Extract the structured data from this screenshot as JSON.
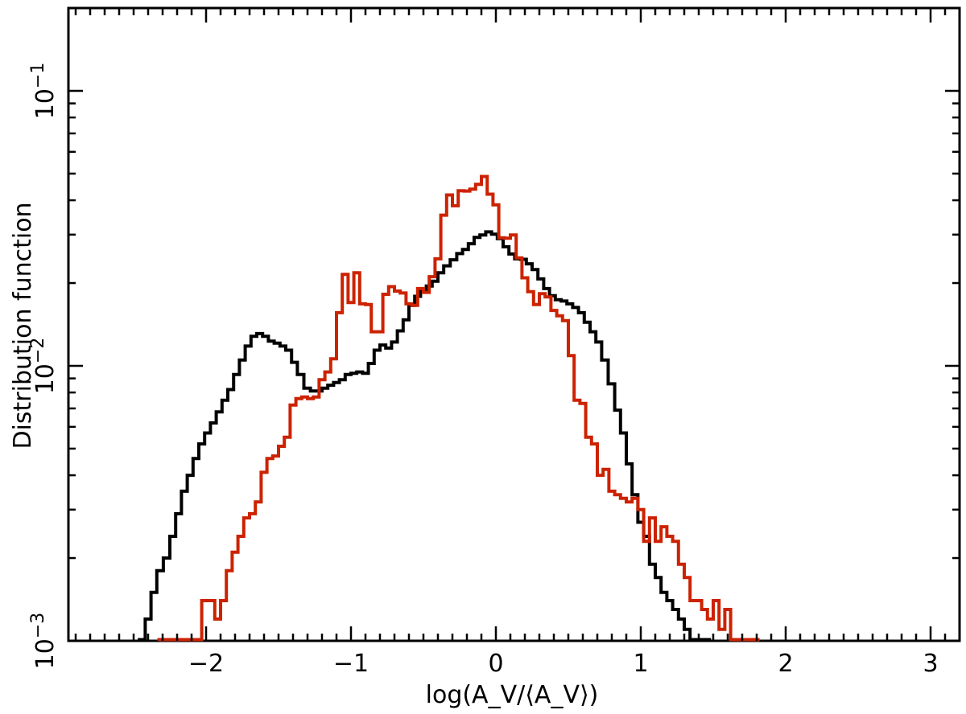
{
  "chart_data": {
    "type": "line",
    "step": true,
    "xlabel": "log(A_V/⟨A_V⟩)",
    "ylabel": "Distribution function",
    "xlim": [
      -2.95,
      3.2
    ],
    "ylim": [
      0.001,
      0.2
    ],
    "yscale": "log",
    "x_ticks": [
      {
        "value": -2,
        "label": "−2"
      },
      {
        "value": -1,
        "label": "−1"
      },
      {
        "value": 0,
        "label": "0"
      },
      {
        "value": 1,
        "label": "1"
      },
      {
        "value": 2,
        "label": "2"
      },
      {
        "value": 3,
        "label": "3"
      }
    ],
    "y_ticks": [
      {
        "value": 0.001,
        "base": "10",
        "exp": "−3"
      },
      {
        "value": 0.01,
        "base": "10",
        "exp": "−2"
      },
      {
        "value": 0.1,
        "base": "10",
        "exp": "−1"
      }
    ],
    "grid": false,
    "series": [
      {
        "color": "#000000",
        "x": [
          -2.44,
          -2.4,
          -2.36,
          -2.32,
          -2.27,
          -2.23,
          -2.19,
          -2.15,
          -2.11,
          -2.07,
          -2.03,
          -1.99,
          -1.95,
          -1.91,
          -1.87,
          -1.83,
          -1.79,
          -1.75,
          -1.71,
          -1.67,
          -1.63,
          -1.59,
          -1.55,
          -1.51,
          -1.47,
          -1.43,
          -1.39,
          -1.35,
          -1.3,
          -1.26,
          -1.22,
          -1.18,
          -1.14,
          -1.1,
          -1.06,
          -1.02,
          -0.98,
          -0.94,
          -0.9,
          -0.86,
          -0.82,
          -0.78,
          -0.74,
          -0.7,
          -0.66,
          -0.62,
          -0.58,
          -0.54,
          -0.5,
          -0.46,
          -0.42,
          -0.38,
          -0.34,
          -0.29,
          -0.25,
          -0.21,
          -0.17,
          -0.13,
          -0.09,
          -0.05,
          -0.01,
          0.03,
          0.07,
          0.11,
          0.15,
          0.19,
          0.23,
          0.27,
          0.31,
          0.35,
          0.39,
          0.43,
          0.47,
          0.51,
          0.55,
          0.59,
          0.63,
          0.67,
          0.71,
          0.75,
          0.8,
          0.84,
          0.88,
          0.92,
          0.96,
          1.0,
          1.04,
          1.08,
          1.12,
          1.16,
          1.2,
          1.24,
          1.28,
          1.32,
          1.36,
          1.4,
          1.44,
          1.47
        ],
        "y": [
          0.001,
          0.0012,
          0.0015,
          0.0018,
          0.002,
          0.0024,
          0.0029,
          0.0035,
          0.004,
          0.0046,
          0.0052,
          0.0057,
          0.0062,
          0.0068,
          0.0075,
          0.0082,
          0.0093,
          0.0105,
          0.0118,
          0.0128,
          0.0131,
          0.0128,
          0.0123,
          0.0121,
          0.0118,
          0.0114,
          0.0103,
          0.0093,
          0.0083,
          0.0081,
          0.0081,
          0.0083,
          0.0085,
          0.0087,
          0.0089,
          0.0093,
          0.0094,
          0.0095,
          0.0094,
          0.0102,
          0.0114,
          0.0119,
          0.0116,
          0.0122,
          0.0134,
          0.0147,
          0.0166,
          0.0179,
          0.0187,
          0.0195,
          0.0203,
          0.0218,
          0.0231,
          0.0243,
          0.0256,
          0.0265,
          0.0278,
          0.0293,
          0.0299,
          0.0307,
          0.0301,
          0.029,
          0.0271,
          0.0255,
          0.0245,
          0.0244,
          0.0235,
          0.0224,
          0.0207,
          0.0191,
          0.018,
          0.0174,
          0.0172,
          0.0168,
          0.0163,
          0.0156,
          0.0144,
          0.0133,
          0.0122,
          0.0105,
          0.0086,
          0.0069,
          0.0057,
          0.0044,
          0.0034,
          0.0027,
          0.0024,
          0.0019,
          0.0017,
          0.0015,
          0.0014,
          0.0013,
          0.0012,
          0.0011,
          0.001,
          0.001,
          0.001,
          0.001
        ]
      },
      {
        "color": "#cc2200",
        "x": [
          -2.25,
          -2.1,
          -1.96,
          -1.92,
          -1.88,
          -1.84,
          -1.8,
          -1.76,
          -1.72,
          -1.68,
          -1.64,
          -1.6,
          -1.56,
          -1.52,
          -1.48,
          -1.44,
          -1.4,
          -1.36,
          -1.32,
          -1.28,
          -1.24,
          -1.2,
          -1.16,
          -1.12,
          -1.08,
          -1.04,
          -1.0,
          -0.96,
          -0.92,
          -0.88,
          -0.84,
          -0.8,
          -0.76,
          -0.72,
          -0.68,
          -0.64,
          -0.6,
          -0.56,
          -0.52,
          -0.48,
          -0.44,
          -0.4,
          -0.36,
          -0.32,
          -0.28,
          -0.24,
          -0.2,
          -0.16,
          -0.12,
          -0.08,
          -0.04,
          0.0,
          0.04,
          0.08,
          0.12,
          0.16,
          0.2,
          0.24,
          0.28,
          0.32,
          0.36,
          0.4,
          0.44,
          0.48,
          0.52,
          0.56,
          0.6,
          0.64,
          0.68,
          0.72,
          0.76,
          0.8,
          0.84,
          0.88,
          0.92,
          0.96,
          1.0,
          1.04,
          1.08,
          1.12,
          1.16,
          1.2,
          1.24,
          1.28,
          1.32,
          1.36,
          1.4,
          1.44,
          1.48,
          1.52,
          1.56,
          1.6,
          1.64,
          1.68,
          1.72,
          1.76,
          1.8
        ],
        "y": [
          0.001,
          0.001,
          0.0014,
          0.0012,
          0.0014,
          0.0018,
          0.0021,
          0.0024,
          0.0028,
          0.0029,
          0.0032,
          0.0041,
          0.0046,
          0.0047,
          0.0051,
          0.0055,
          0.0072,
          0.0076,
          0.0077,
          0.0076,
          0.0077,
          0.0089,
          0.0095,
          0.0106,
          0.0156,
          0.0215,
          0.017,
          0.0218,
          0.0168,
          0.0167,
          0.0133,
          0.0133,
          0.0182,
          0.0194,
          0.0187,
          0.0184,
          0.0168,
          0.0166,
          0.0191,
          0.0185,
          0.0211,
          0.0245,
          0.0353,
          0.0418,
          0.0382,
          0.0433,
          0.0432,
          0.0439,
          0.0457,
          0.0488,
          0.0421,
          0.0385,
          0.0292,
          0.0291,
          0.0299,
          0.0247,
          0.0209,
          0.0186,
          0.0167,
          0.0183,
          0.0178,
          0.0159,
          0.0152,
          0.0146,
          0.0109,
          0.0075,
          0.0073,
          0.0055,
          0.0052,
          0.004,
          0.0042,
          0.0035,
          0.0034,
          0.0033,
          0.0032,
          0.0033,
          0.003,
          0.0023,
          0.0028,
          0.0023,
          0.0026,
          0.0024,
          0.0023,
          0.0019,
          0.0017,
          0.0014,
          0.0014,
          0.0013,
          0.0012,
          0.0014,
          0.0011,
          0.0013,
          0.001,
          0.001,
          0.001,
          0.001,
          0.001
        ]
      }
    ]
  }
}
